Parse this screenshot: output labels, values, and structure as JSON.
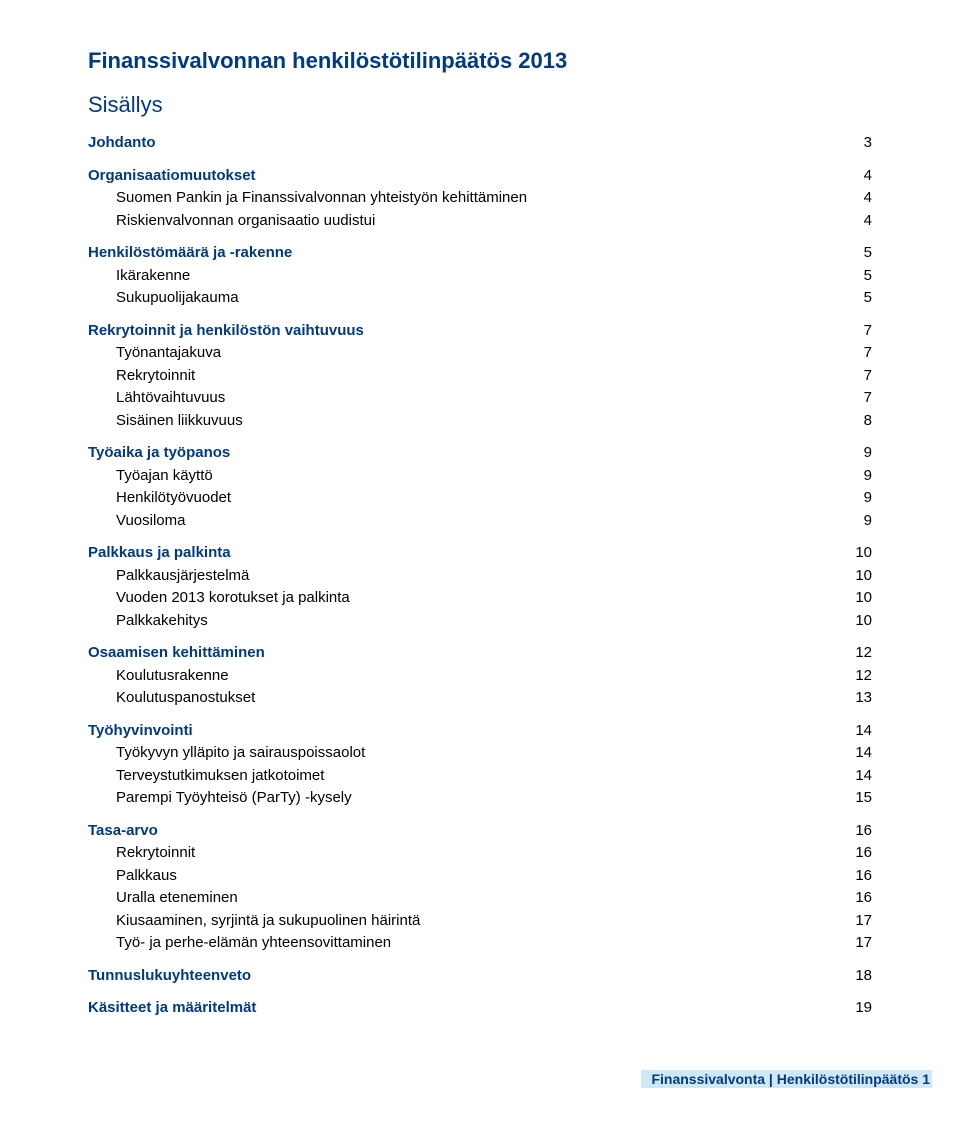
{
  "doc_title": "Finanssivalvonnan henkilöstötilinpäätös 2013",
  "contents_title": "Sisällys",
  "colors": {
    "heading": "#003a80",
    "text": "#000000",
    "footer_bg": "#cfe8f6",
    "background": "#ffffff"
  },
  "typography": {
    "title_fontsize_pt": 17,
    "body_fontsize_pt": 11,
    "font_family": "Arial"
  },
  "toc": [
    {
      "title": "Johdanto",
      "page": 3,
      "children": []
    },
    {
      "title": "Organisaatiomuutokset",
      "page": 4,
      "children": [
        {
          "title": "Suomen Pankin ja Finanssivalvonnan yhteistyön kehittäminen",
          "page": 4
        },
        {
          "title": "Riskienvalvonnan organisaatio uudistui",
          "page": 4
        }
      ]
    },
    {
      "title": "Henkilöstömäärä ja -rakenne",
      "page": 5,
      "children": [
        {
          "title": "Ikärakenne",
          "page": 5
        },
        {
          "title": "Sukupuolijakauma",
          "page": 5
        }
      ]
    },
    {
      "title": "Rekrytoinnit ja henkilöstön vaihtuvuus",
      "page": 7,
      "children": [
        {
          "title": "Työnantajakuva",
          "page": 7
        },
        {
          "title": "Rekrytoinnit",
          "page": 7
        },
        {
          "title": "Lähtövaihtuvuus",
          "page": 7
        },
        {
          "title": "Sisäinen liikkuvuus",
          "page": 8
        }
      ]
    },
    {
      "title": "Työaika ja työpanos",
      "page": 9,
      "children": [
        {
          "title": "Työajan käyttö",
          "page": 9
        },
        {
          "title": "Henkilötyövuodet",
          "page": 9
        },
        {
          "title": "Vuosiloma",
          "page": 9
        }
      ]
    },
    {
      "title": "Palkkaus ja palkinta",
      "page": 10,
      "children": [
        {
          "title": "Palkkausjärjestelmä",
          "page": 10
        },
        {
          "title": "Vuoden 2013 korotukset ja palkinta",
          "page": 10
        },
        {
          "title": "Palkkakehitys",
          "page": 10
        }
      ]
    },
    {
      "title": "Osaamisen kehittäminen",
      "page": 12,
      "children": [
        {
          "title": "Koulutusrakenne",
          "page": 12
        },
        {
          "title": "Koulutuspanostukset",
          "page": 13
        }
      ]
    },
    {
      "title": "Työhyvinvointi",
      "page": 14,
      "children": [
        {
          "title": "Työkyvyn ylläpito ja sairauspoissaolot",
          "page": 14
        },
        {
          "title": "Terveystutkimuksen jatkotoimet",
          "page": 14
        },
        {
          "title": "Parempi Työyhteisö (ParTy) -kysely",
          "page": 15
        }
      ]
    },
    {
      "title": "Tasa-arvo",
      "page": 16,
      "children": [
        {
          "title": "Rekrytoinnit",
          "page": 16
        },
        {
          "title": "Palkkaus",
          "page": 16
        },
        {
          "title": "Uralla eteneminen",
          "page": 16
        },
        {
          "title": "Kiusaaminen, syrjintä ja sukupuolinen häirintä",
          "page": 17
        },
        {
          "title": "Työ- ja perhe-elämän yhteensovittaminen",
          "page": 17
        }
      ]
    },
    {
      "title": "Tunnuslukuyhteenveto",
      "page": 18,
      "children": []
    },
    {
      "title": "Käsitteet ja määritelmät",
      "page": 19,
      "children": []
    }
  ],
  "footer": {
    "left": "Finanssivalvonta",
    "right": "Henkilöstötilinpäätös 1"
  }
}
